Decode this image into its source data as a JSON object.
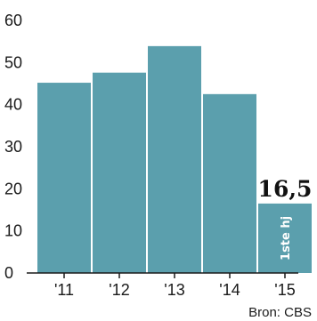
{
  "chart_data": {
    "type": "bar",
    "categories": [
      "'11",
      "'12",
      "'13",
      "'14",
      "'15"
    ],
    "values": [
      45.2,
      47.6,
      53.9,
      42.5,
      16.5
    ],
    "ylim": [
      0,
      60
    ],
    "yticks": [
      0,
      10,
      20,
      30,
      40,
      50,
      60
    ],
    "grid": false,
    "highlight": {
      "index": 4,
      "value_label": "16,5",
      "bar_label": "1ste hj"
    },
    "source": "Bron: CBS",
    "colors": {
      "bar": "#5b9fad",
      "axis": "#1a1a1a",
      "text": "#1a1a1a",
      "bar_text": "#ffffff"
    }
  }
}
